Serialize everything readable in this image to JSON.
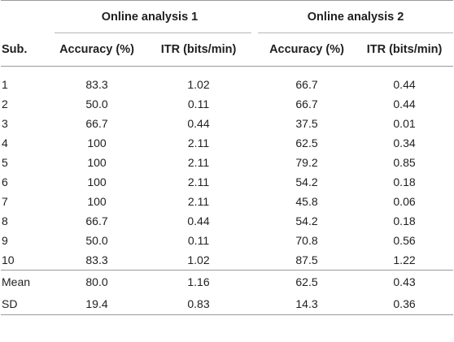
{
  "table": {
    "group_headers": [
      "Online analysis 1",
      "Online analysis 2"
    ],
    "column_headers": [
      "Sub.",
      "Accuracy (%)",
      "ITR (bits/min)",
      "Accuracy (%)",
      "ITR (bits/min)"
    ],
    "rows": [
      [
        "1",
        "83.3",
        "1.02",
        "66.7",
        "0.44"
      ],
      [
        "2",
        "50.0",
        "0.11",
        "66.7",
        "0.44"
      ],
      [
        "3",
        "66.7",
        "0.44",
        "37.5",
        "0.01"
      ],
      [
        "4",
        "100",
        "2.11",
        "62.5",
        "0.34"
      ],
      [
        "5",
        "100",
        "2.11",
        "79.2",
        "0.85"
      ],
      [
        "6",
        "100",
        "2.11",
        "54.2",
        "0.18"
      ],
      [
        "7",
        "100",
        "2.11",
        "45.8",
        "0.06"
      ],
      [
        "8",
        "66.7",
        "0.44",
        "54.2",
        "0.18"
      ],
      [
        "9",
        "50.0",
        "0.11",
        "70.8",
        "0.56"
      ],
      [
        "10",
        "83.3",
        "1.02",
        "87.5",
        "1.22"
      ]
    ],
    "summary_rows": [
      [
        "Mean",
        "80.0",
        "1.16",
        "62.5",
        "0.43"
      ],
      [
        "SD",
        "19.4",
        "0.83",
        "14.3",
        "0.36"
      ]
    ]
  }
}
